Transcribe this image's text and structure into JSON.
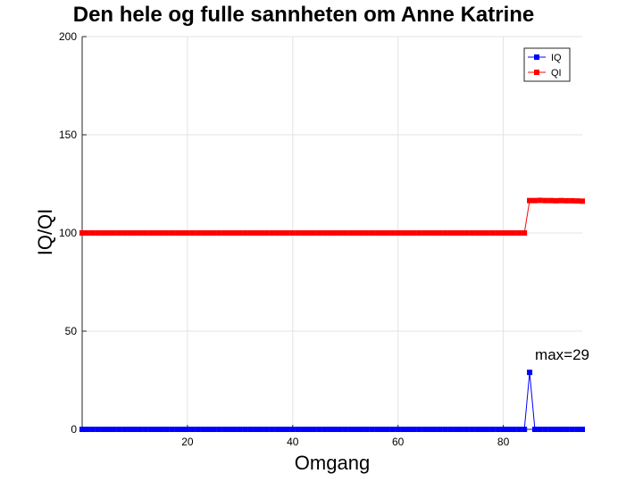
{
  "chart_data": {
    "type": "line",
    "title": "Den hele og fulle sannheten om Anne Katrine",
    "xlabel": "Omgang",
    "ylabel": "IQ/QI",
    "xlim": [
      0,
      95
    ],
    "ylim": [
      0,
      200
    ],
    "xticks": [
      20,
      40,
      60,
      80
    ],
    "yticks": [
      0,
      50,
      100,
      150,
      200
    ],
    "grid": true,
    "legend_position": "top-right",
    "x": [
      0,
      1,
      2,
      3,
      4,
      5,
      6,
      7,
      8,
      9,
      10,
      11,
      12,
      13,
      14,
      15,
      16,
      17,
      18,
      19,
      20,
      21,
      22,
      23,
      24,
      25,
      26,
      27,
      28,
      29,
      30,
      31,
      32,
      33,
      34,
      35,
      36,
      37,
      38,
      39,
      40,
      41,
      42,
      43,
      44,
      45,
      46,
      47,
      48,
      49,
      50,
      51,
      52,
      53,
      54,
      55,
      56,
      57,
      58,
      59,
      60,
      61,
      62,
      63,
      64,
      65,
      66,
      67,
      68,
      69,
      70,
      71,
      72,
      73,
      74,
      75,
      76,
      77,
      78,
      79,
      80,
      81,
      82,
      83,
      84,
      85,
      86,
      87,
      88,
      89,
      90,
      91,
      92,
      93,
      94,
      95
    ],
    "series": [
      {
        "name": "IQ",
        "color": "#0000ff",
        "values": [
          0,
          0,
          0,
          0,
          0,
          0,
          0,
          0,
          0,
          0,
          0,
          0,
          0,
          0,
          0,
          0,
          0,
          0,
          0,
          0,
          0,
          0,
          0,
          0,
          0,
          0,
          0,
          0,
          0,
          0,
          0,
          0,
          0,
          0,
          0,
          0,
          0,
          0,
          0,
          0,
          0,
          0,
          0,
          0,
          0,
          0,
          0,
          0,
          0,
          0,
          0,
          0,
          0,
          0,
          0,
          0,
          0,
          0,
          0,
          0,
          0,
          0,
          0,
          0,
          0,
          0,
          0,
          0,
          0,
          0,
          0,
          0,
          0,
          0,
          0,
          0,
          0,
          0,
          0,
          0,
          0,
          0,
          0,
          0,
          0,
          29,
          0,
          0,
          0,
          0,
          0,
          0,
          0,
          0,
          0,
          0
        ]
      },
      {
        "name": "QI",
        "color": "#ff0000",
        "values": [
          100,
          100,
          100,
          100,
          100,
          100,
          100,
          100,
          100,
          100,
          100,
          100,
          100,
          100,
          100,
          100,
          100,
          100,
          100,
          100,
          100,
          100,
          100,
          100,
          100,
          100,
          100,
          100,
          100,
          100,
          100,
          100,
          100,
          100,
          100,
          100,
          100,
          100,
          100,
          100,
          100,
          100,
          100,
          100,
          100,
          100,
          100,
          100,
          100,
          100,
          100,
          100,
          100,
          100,
          100,
          100,
          100,
          100,
          100,
          100,
          100,
          100,
          100,
          100,
          100,
          100,
          100,
          100,
          100,
          100,
          100,
          100,
          100,
          100,
          100,
          100,
          100,
          100,
          100,
          100,
          100,
          100,
          100,
          100,
          100,
          116.5,
          116.5,
          116.6,
          116.5,
          116.5,
          116.4,
          116.5,
          116.4,
          116.4,
          116.3,
          116.2
        ]
      }
    ],
    "annotations": [
      {
        "text": "max=29",
        "x": 85,
        "y": 29
      }
    ]
  }
}
